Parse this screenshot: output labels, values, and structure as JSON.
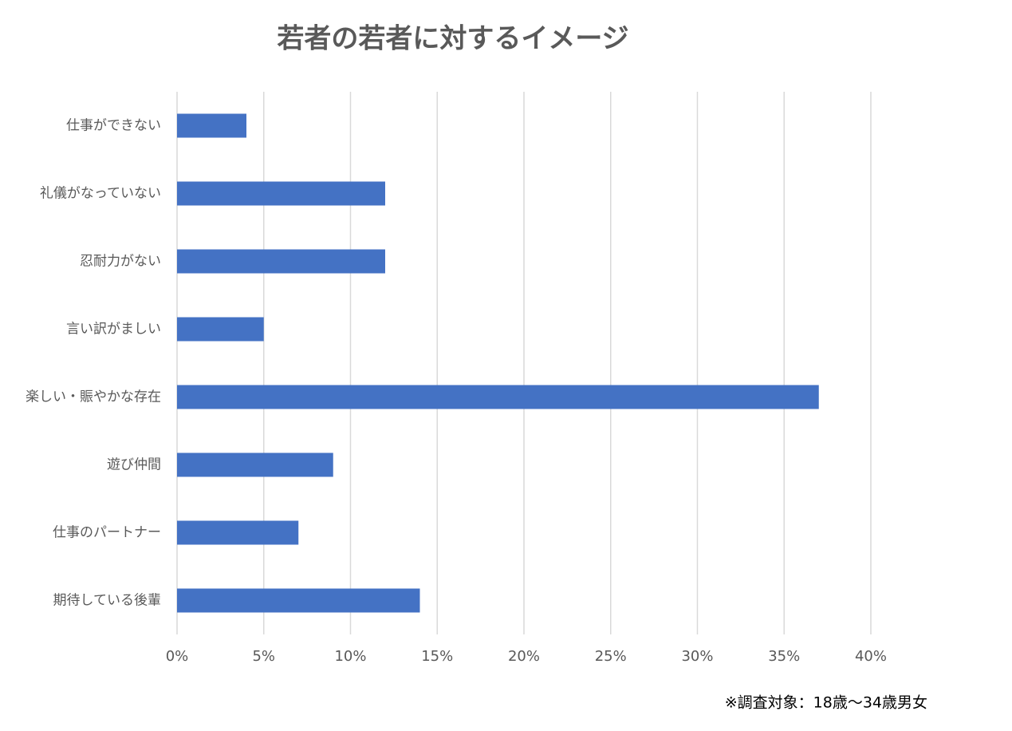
{
  "chart_data": {
    "type": "bar",
    "orientation": "horizontal",
    "title": "若者の若者に対するイメージ",
    "categories": [
      "仕事ができない",
      "礼儀がなっていない",
      "忍耐力がない",
      "言い訳がましい",
      "楽しい・賑やかな存在",
      "遊び仲間",
      "仕事のパートナー",
      "期待している後輩"
    ],
    "values": [
      4,
      12,
      12,
      5,
      37,
      9,
      7,
      14
    ],
    "color": "#4472c4",
    "xlim": [
      0,
      40
    ],
    "xticks": [
      {
        "value": 0,
        "label": "0%"
      },
      {
        "value": 5,
        "label": "5%"
      },
      {
        "value": 10,
        "label": "10%"
      },
      {
        "value": 15,
        "label": "15%"
      },
      {
        "value": 20,
        "label": "20%"
      },
      {
        "value": 25,
        "label": "25%"
      },
      {
        "value": 30,
        "label": "30%"
      },
      {
        "value": 35,
        "label": "35%"
      },
      {
        "value": 40,
        "label": "40%"
      }
    ],
    "grid": true,
    "annotation": "※調査対象：18歳～34歳男女"
  }
}
